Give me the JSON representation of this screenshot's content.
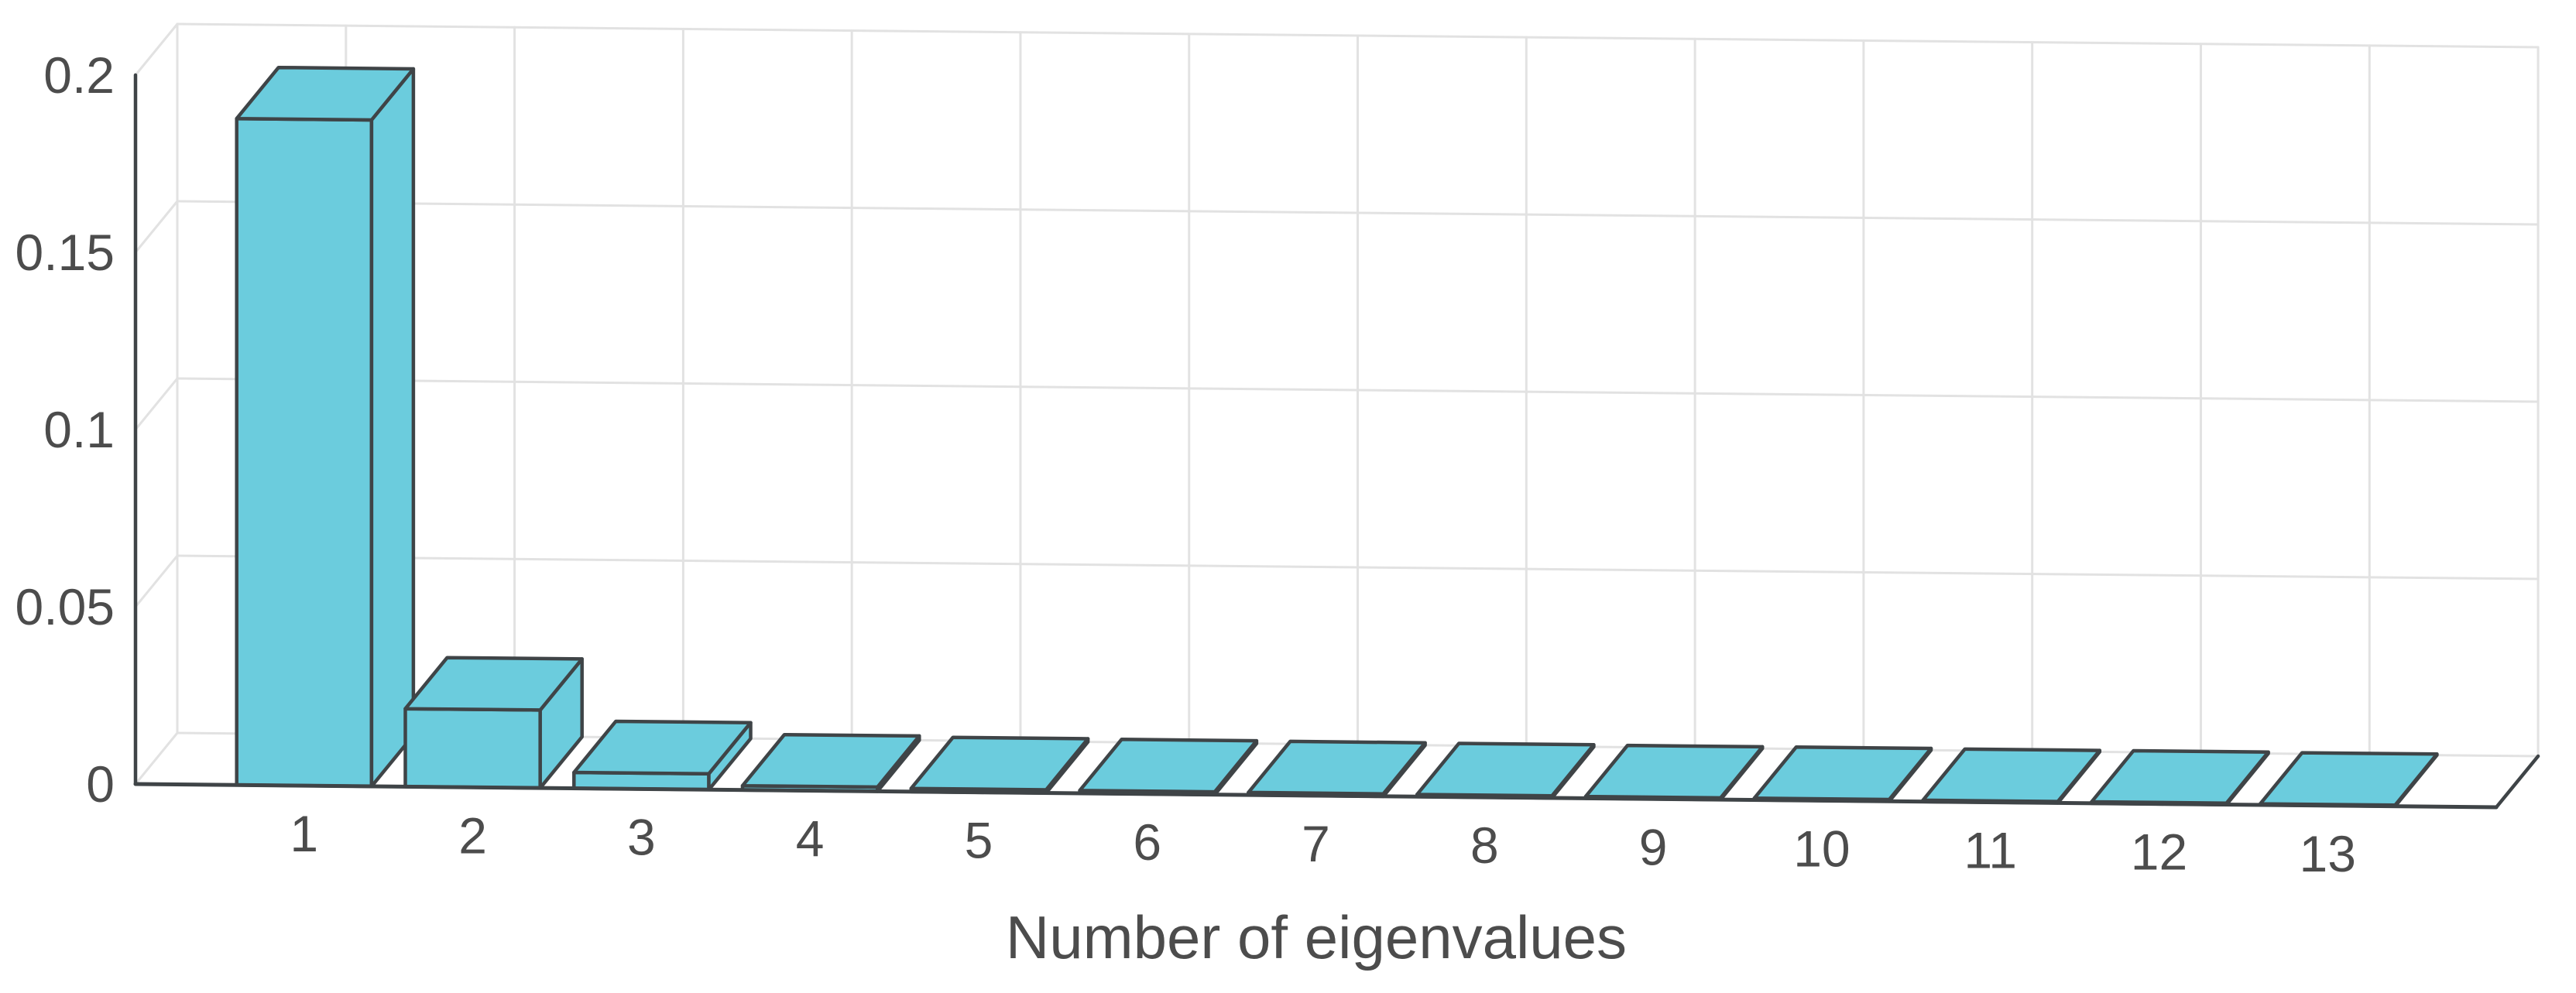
{
  "figure": {
    "background": "#ffffff"
  },
  "chart_data": {
    "type": "bar",
    "style": "matlab-bar3-3d",
    "title": "",
    "xlabel": "Number of eigenvalues",
    "ylabel": "",
    "categories": [
      "1",
      "2",
      "3",
      "4",
      "5",
      "6",
      "7",
      "8",
      "9",
      "10",
      "11",
      "12",
      "13"
    ],
    "values": [
      0.188,
      0.022,
      0.0045,
      0.0012,
      0.0009,
      0.0008,
      0.0007,
      0.0006,
      0.0005,
      0.0005,
      0.0004,
      0.0004,
      0.0003
    ],
    "xlim": [
      0,
      14
    ],
    "ylim": [
      0,
      0.2
    ],
    "yticks": [
      0,
      0.05,
      0.1,
      0.15,
      0.2
    ],
    "ytick_labels": [
      "0",
      "0.05",
      "0.1",
      "0.15",
      "0.2"
    ],
    "grid": true,
    "legend": false,
    "bar_width": 0.8,
    "colors": {
      "bar_fill": "#6bccdd",
      "bar_edge": "#3f4447",
      "axis_line": "#3f4447",
      "grid_line": "#e2e2e2",
      "text": "#4c4c4c"
    }
  }
}
